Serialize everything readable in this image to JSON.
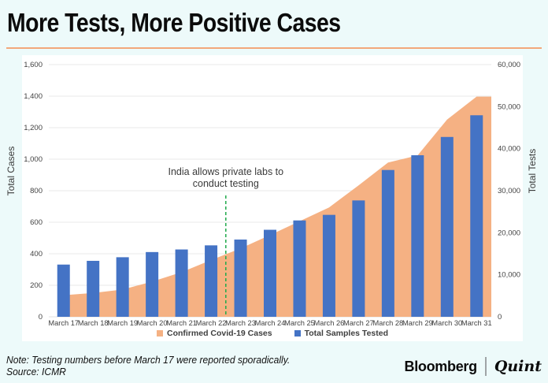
{
  "page": {
    "title": "More Tests, More Positive Cases",
    "note_line1": "Note: Testing numbers before March 17 were reported sporadically.",
    "note_line2": "Source: ICMR",
    "brand": {
      "bloomberg": "Bloomberg",
      "separator": "|",
      "quint": "Quint"
    }
  },
  "chart_data": {
    "type": "combo-area-bar",
    "categories": [
      "March 17",
      "March 18",
      "March 19",
      "March 20",
      "March 21",
      "March 22",
      "March 23",
      "March 24",
      "March 25",
      "March 26",
      "March 27",
      "March 28",
      "March 29",
      "March 30",
      "March 31"
    ],
    "series": [
      {
        "name": "Confirmed Covid-19 Cases",
        "type": "area",
        "axis": "left",
        "color": "#f5b183",
        "values": [
          137,
          151,
          173,
          223,
          283,
          360,
          434,
          519,
          606,
          694,
          834,
          979,
          1024,
          1251,
          1397
        ]
      },
      {
        "name": "Total Samples Tested",
        "type": "bar",
        "axis": "right",
        "color": "#4473c5",
        "values": [
          12426,
          13316,
          14175,
          15404,
          16021,
          16999,
          18383,
          20707,
          22928,
          24254,
          27688,
          34931,
          38442,
          42788,
          47951
        ]
      }
    ],
    "left_axis": {
      "label": "Total Cases",
      "min": 0,
      "max": 1600,
      "step": 200,
      "ticks": [
        "0",
        "200",
        "400",
        "600",
        "800",
        "1,000",
        "1,200",
        "1,400",
        "1,600"
      ]
    },
    "right_axis": {
      "label": "Total Tests",
      "min": 0,
      "max": 60000,
      "step": 10000,
      "ticks": [
        "0",
        "10,000",
        "20,000",
        "30,000",
        "40,000",
        "50,000",
        "60,000"
      ]
    },
    "annotation": {
      "lines": [
        "India allows private labs to",
        "conduct testing"
      ],
      "after_category_index": 6,
      "line_color": "#1fa94b",
      "text_color": "#3a3a3a"
    },
    "layout": {
      "grid": true,
      "legend_position": "bottom",
      "gridline_color": "#e8e8e8",
      "tick_color": "#424242"
    }
  }
}
